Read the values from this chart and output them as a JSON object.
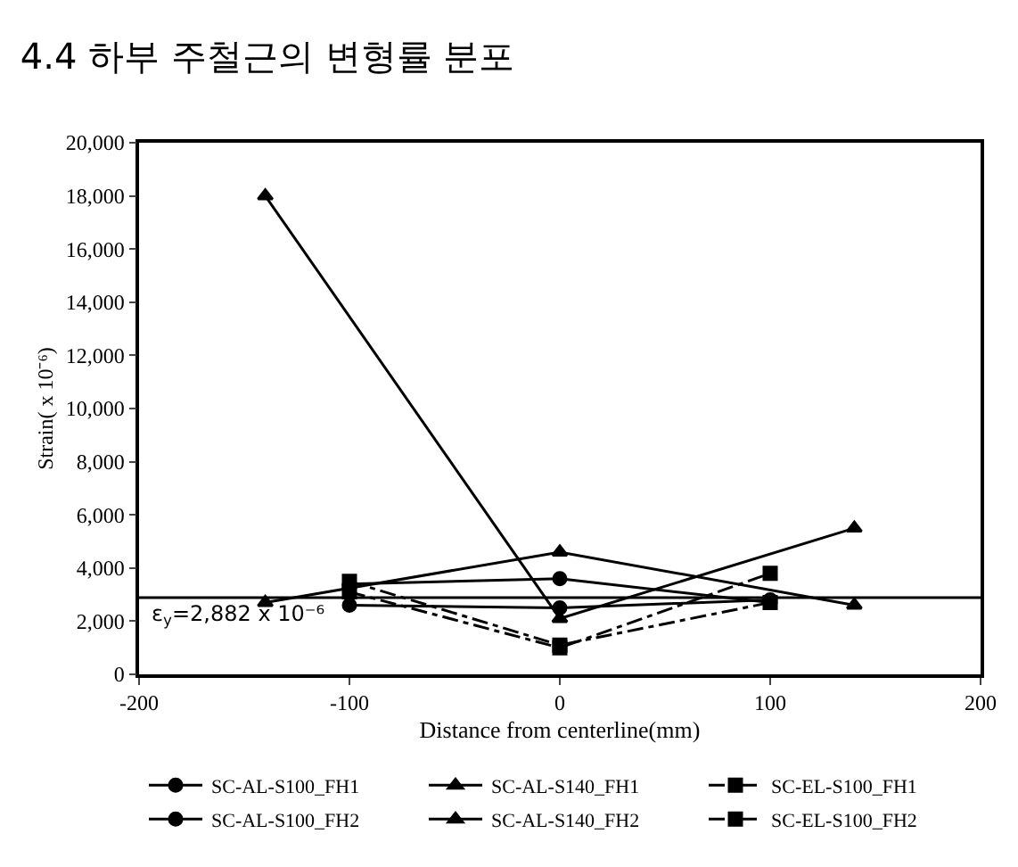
{
  "chart_data": {
    "type": "line",
    "title": "4.4 하부 주철근의 변형률 분포",
    "xlabel": "Distance from centerline(mm)",
    "ylabel": "Strain( x 10⁻⁶)",
    "xlim": [
      -200,
      200
    ],
    "xticks": [
      -200,
      -100,
      0,
      100,
      200
    ],
    "ylim": [
      0,
      20000
    ],
    "yticks": [
      {
        "value": 0,
        "label": "0"
      },
      {
        "value": 2000,
        "label": "2,000"
      },
      {
        "value": 4000,
        "label": "4,000"
      },
      {
        "value": 6000,
        "label": "6,000"
      },
      {
        "value": 8000,
        "label": "8,000"
      },
      {
        "value": 10000,
        "label": "10,000"
      },
      {
        "value": 12000,
        "label": "12,000"
      },
      {
        "value": 14000,
        "label": "14,000"
      },
      {
        "value": 16000,
        "label": "16,000"
      },
      {
        "value": 18000,
        "label": "18,000"
      },
      {
        "value": 20000,
        "label": "20,000"
      }
    ],
    "legend": "bottom",
    "ref_lines": [
      {
        "axis": "y",
        "value": 2882,
        "label": "ε$_{y}$=2,882 x 10⁻⁶",
        "color": "#000000",
        "line_style": "solid"
      }
    ],
    "series": [
      {
        "name": "SC-AL-S100_FH1",
        "color": "#000000",
        "marker": "circle",
        "line_style": "solid",
        "x": [
          -100,
          0,
          100
        ],
        "values": [
          3400,
          3600,
          2700
        ]
      },
      {
        "name": "SC-AL-S140_FH1",
        "color": "#000000",
        "marker": "triangle",
        "line_style": "solid",
        "x": [
          -140,
          0,
          140
        ],
        "values": [
          18000,
          2100,
          5500
        ]
      },
      {
        "name": "SC-EL-S100_FH1",
        "color": "#000000",
        "marker": "square",
        "line_style": "dashed",
        "x": [
          -100,
          0,
          100
        ],
        "values": [
          3500,
          1100,
          2700
        ]
      },
      {
        "name": "SC-AL-S100_FH2",
        "color": "#000000",
        "marker": "circle",
        "line_style": "solid",
        "x": [
          -100,
          0,
          100
        ],
        "values": [
          2600,
          2500,
          2800
        ]
      },
      {
        "name": "SC-AL-S140_FH2",
        "color": "#000000",
        "marker": "triangle",
        "line_style": "solid",
        "x": [
          -140,
          0,
          140
        ],
        "values": [
          2700,
          4600,
          2600
        ]
      },
      {
        "name": "SC-EL-S100_FH2",
        "color": "#000000",
        "marker": "square",
        "line_style": "dashed",
        "x": [
          -100,
          0,
          100
        ],
        "values": [
          3100,
          1000,
          3800
        ]
      }
    ]
  }
}
